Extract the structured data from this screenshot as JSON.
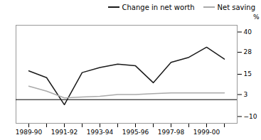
{
  "chart_data": {
    "type": "line",
    "categories": [
      "1989-90",
      null,
      "1991-92",
      null,
      "1993-94",
      null,
      "1995-96",
      null,
      "1997-98",
      null,
      "1999-00",
      null
    ],
    "series": [
      {
        "name": "Change in net worth",
        "color": "#1a1a1a",
        "values": [
          17,
          13,
          -3,
          16,
          19,
          21,
          20,
          10,
          22,
          25,
          31,
          24
        ]
      },
      {
        "name": "Net saving",
        "color": "#aaaaaa",
        "values": [
          8,
          5,
          1,
          1.5,
          2,
          3,
          3,
          3.5,
          4,
          4,
          4,
          4
        ]
      }
    ],
    "ylabel": "%",
    "ylim": [
      -14,
      44
    ],
    "yticks": [
      -10,
      3,
      15,
      28,
      40
    ],
    "grid": false,
    "legend": "upper right"
  }
}
